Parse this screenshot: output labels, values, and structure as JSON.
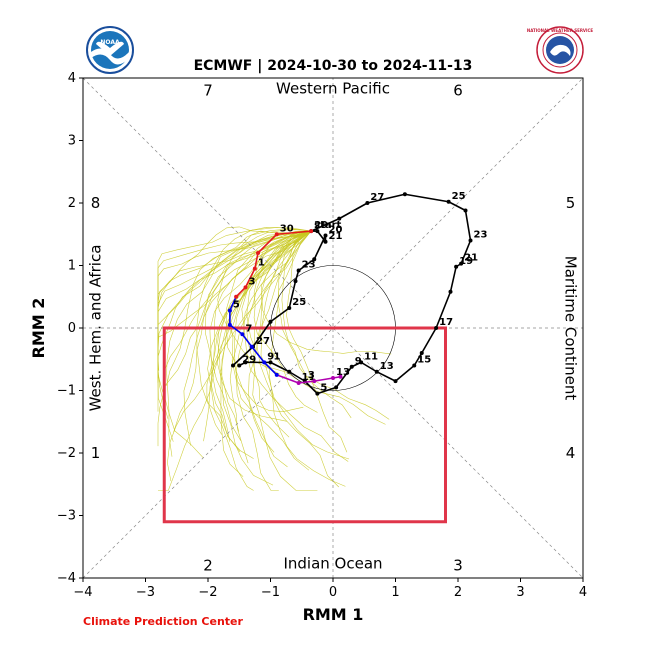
{
  "header": {
    "title": "ECMWF | 2024-10-30 to 2024-11-13",
    "noaa_logo_text": "NOAA",
    "nws_logo_text": "NATIONAL WEATHER SERVICE"
  },
  "footer": {
    "credit": "Climate Prediction Center"
  },
  "colors": {
    "observed": "#000000",
    "forecast_start": "#e31a1c",
    "forecast_mid": "#0000ee",
    "forecast_end": "#b000b0",
    "ensemble": "#c8c81e",
    "box": "#e0354a"
  },
  "chart_data": {
    "type": "line",
    "xlabel": "RMM 1",
    "ylabel": "RMM 2",
    "xlim": [
      -4,
      4
    ],
    "ylim": [
      -4,
      4
    ],
    "xticks": [
      "−4",
      "−3",
      "−2",
      "−1",
      "0",
      "1",
      "2",
      "3",
      "4"
    ],
    "yticks": [
      "−4",
      "−3",
      "−2",
      "−1",
      "0",
      "1",
      "2",
      "3",
      "4"
    ],
    "regions": {
      "top": "Western Pacific",
      "bottom": "Indian Ocean",
      "left": "West. Hem. and Africa",
      "right": "Maritime Continent"
    },
    "phases": [
      {
        "label": "1",
        "x": -3.8,
        "y": -2.0
      },
      {
        "label": "2",
        "x": -2.0,
        "y": -3.8
      },
      {
        "label": "3",
        "x": 2.0,
        "y": -3.8
      },
      {
        "label": "4",
        "x": 3.8,
        "y": -2.0
      },
      {
        "label": "5",
        "x": 3.8,
        "y": 2.0
      },
      {
        "label": "6",
        "x": 2.0,
        "y": 3.8
      },
      {
        "label": "7",
        "x": -2.0,
        "y": 3.8
      },
      {
        "label": "8",
        "x": -3.8,
        "y": 2.0
      }
    ],
    "unit_circle_radius": 1,
    "box": {
      "x": [
        -2.7,
        1.8
      ],
      "y": [
        -3.1,
        0.0
      ]
    },
    "observed": [
      {
        "x": -1.5,
        "y": -0.6,
        "label": "29"
      },
      {
        "x": -1.4,
        "y": -0.55,
        "label": ""
      },
      {
        "x": -1.0,
        "y": -0.55,
        "label": "1"
      },
      {
        "x": -0.7,
        "y": -0.7,
        "label": ""
      },
      {
        "x": -0.45,
        "y": -0.85,
        "label": "3"
      },
      {
        "x": -0.25,
        "y": -1.05,
        "label": "5"
      },
      {
        "x": 0.05,
        "y": -0.95,
        "label": ""
      },
      {
        "x": 0.3,
        "y": -0.62,
        "label": "9"
      },
      {
        "x": 0.45,
        "y": -0.55,
        "label": "11"
      },
      {
        "x": 0.7,
        "y": -0.7,
        "label": "13"
      },
      {
        "x": 1.0,
        "y": -0.85,
        "label": ""
      },
      {
        "x": 1.3,
        "y": -0.6,
        "label": "15"
      },
      {
        "x": 1.42,
        "y": -0.4,
        "label": ""
      },
      {
        "x": 1.65,
        "y": 0.0,
        "label": "17"
      },
      {
        "x": 1.88,
        "y": 0.58,
        "label": ""
      },
      {
        "x": 1.97,
        "y": 0.98,
        "label": "19"
      },
      {
        "x": 2.05,
        "y": 1.03,
        "label": "21"
      },
      {
        "x": 2.2,
        "y": 1.4,
        "label": "23"
      },
      {
        "x": 2.12,
        "y": 1.88,
        "label": ""
      },
      {
        "x": 1.85,
        "y": 2.02,
        "label": "25"
      },
      {
        "x": 1.15,
        "y": 2.14,
        "label": ""
      },
      {
        "x": 0.55,
        "y": 2.0,
        "label": "27"
      },
      {
        "x": 0.1,
        "y": 1.75,
        "label": ""
      },
      {
        "x": -0.35,
        "y": 1.55,
        "label": "29"
      },
      {
        "x": -0.25,
        "y": 1.55,
        "label": ""
      },
      {
        "x": -0.12,
        "y": 1.38,
        "label": "21"
      },
      {
        "x": -0.12,
        "y": 1.48,
        "label": "20"
      },
      {
        "x": -0.3,
        "y": 1.1,
        "label": ""
      },
      {
        "x": -0.55,
        "y": 0.92,
        "label": "23"
      },
      {
        "x": -0.6,
        "y": 0.75,
        "label": ""
      },
      {
        "x": -0.7,
        "y": 0.32,
        "label": "25"
      },
      {
        "x": -1.0,
        "y": 0.1,
        "label": ""
      },
      {
        "x": -1.28,
        "y": -0.3,
        "label": "27"
      },
      {
        "x": -1.6,
        "y": -0.6,
        "label": ""
      }
    ],
    "forecast": [
      {
        "x": -0.35,
        "y": 1.55,
        "label": "start",
        "seg": "red"
      },
      {
        "x": -0.9,
        "y": 1.5,
        "label": "30",
        "seg": "red"
      },
      {
        "x": -1.2,
        "y": 1.2,
        "label": "",
        "seg": "red"
      },
      {
        "x": -1.25,
        "y": 0.95,
        "label": "1",
        "seg": "red"
      },
      {
        "x": -1.4,
        "y": 0.65,
        "label": "3",
        "seg": "red"
      },
      {
        "x": -1.55,
        "y": 0.5,
        "label": "",
        "seg": "red"
      },
      {
        "x": -1.65,
        "y": 0.28,
        "label": "5",
        "seg": "blue"
      },
      {
        "x": -1.65,
        "y": 0.05,
        "label": "",
        "seg": "blue"
      },
      {
        "x": -1.45,
        "y": -0.1,
        "label": "7",
        "seg": "blue"
      },
      {
        "x": -1.3,
        "y": -0.3,
        "label": "",
        "seg": "blue"
      },
      {
        "x": -1.1,
        "y": -0.55,
        "label": "9",
        "seg": "blue"
      },
      {
        "x": -0.9,
        "y": -0.75,
        "label": "",
        "seg": "blue"
      },
      {
        "x": -0.55,
        "y": -0.88,
        "label": "11",
        "seg": "purple"
      },
      {
        "x": -0.3,
        "y": -0.85,
        "label": "",
        "seg": "purple"
      },
      {
        "x": 0.0,
        "y": -0.8,
        "label": "13",
        "seg": "purple"
      },
      {
        "x": 0.12,
        "y": -0.78,
        "label": "",
        "seg": "purple"
      }
    ]
  }
}
